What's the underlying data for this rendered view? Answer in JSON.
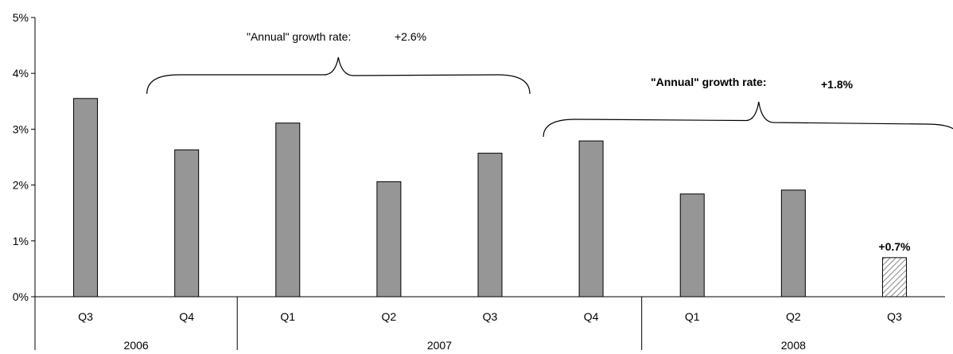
{
  "chart_data": {
    "type": "bar",
    "categories": [
      "Q3",
      "Q4",
      "Q1",
      "Q2",
      "Q3",
      "Q4",
      "Q1",
      "Q2",
      "Q3"
    ],
    "years": [
      {
        "label": "2006",
        "from": 0,
        "to": 1
      },
      {
        "label": "2007",
        "from": 2,
        "to": 5
      },
      {
        "label": "2008",
        "from": 6,
        "to": 8
      }
    ],
    "values": [
      3.55,
      2.63,
      3.11,
      2.06,
      2.57,
      2.79,
      1.84,
      1.91,
      0.7
    ],
    "hatched": [
      false,
      false,
      false,
      false,
      false,
      false,
      false,
      false,
      true
    ],
    "ylim": [
      0,
      5
    ],
    "yticks": [
      0,
      1,
      2,
      3,
      4,
      5
    ],
    "ytick_labels": [
      "0%",
      "1%",
      "2%",
      "3%",
      "4%",
      "5%"
    ],
    "bar_labels": [
      {
        "index": 8,
        "text": "+0.7%"
      }
    ],
    "annotations": [
      {
        "label": "\"Annual\" growth rate:",
        "value": "+2.6%",
        "from": 1,
        "to": 4,
        "bold": false
      },
      {
        "label": "\"Annual\" growth rate:",
        "value": "+1.8%",
        "from": 5,
        "to": 8,
        "bold": true
      }
    ],
    "colors": {
      "bar": "#969696",
      "hatch": "#888888",
      "axis": "#000000"
    }
  }
}
